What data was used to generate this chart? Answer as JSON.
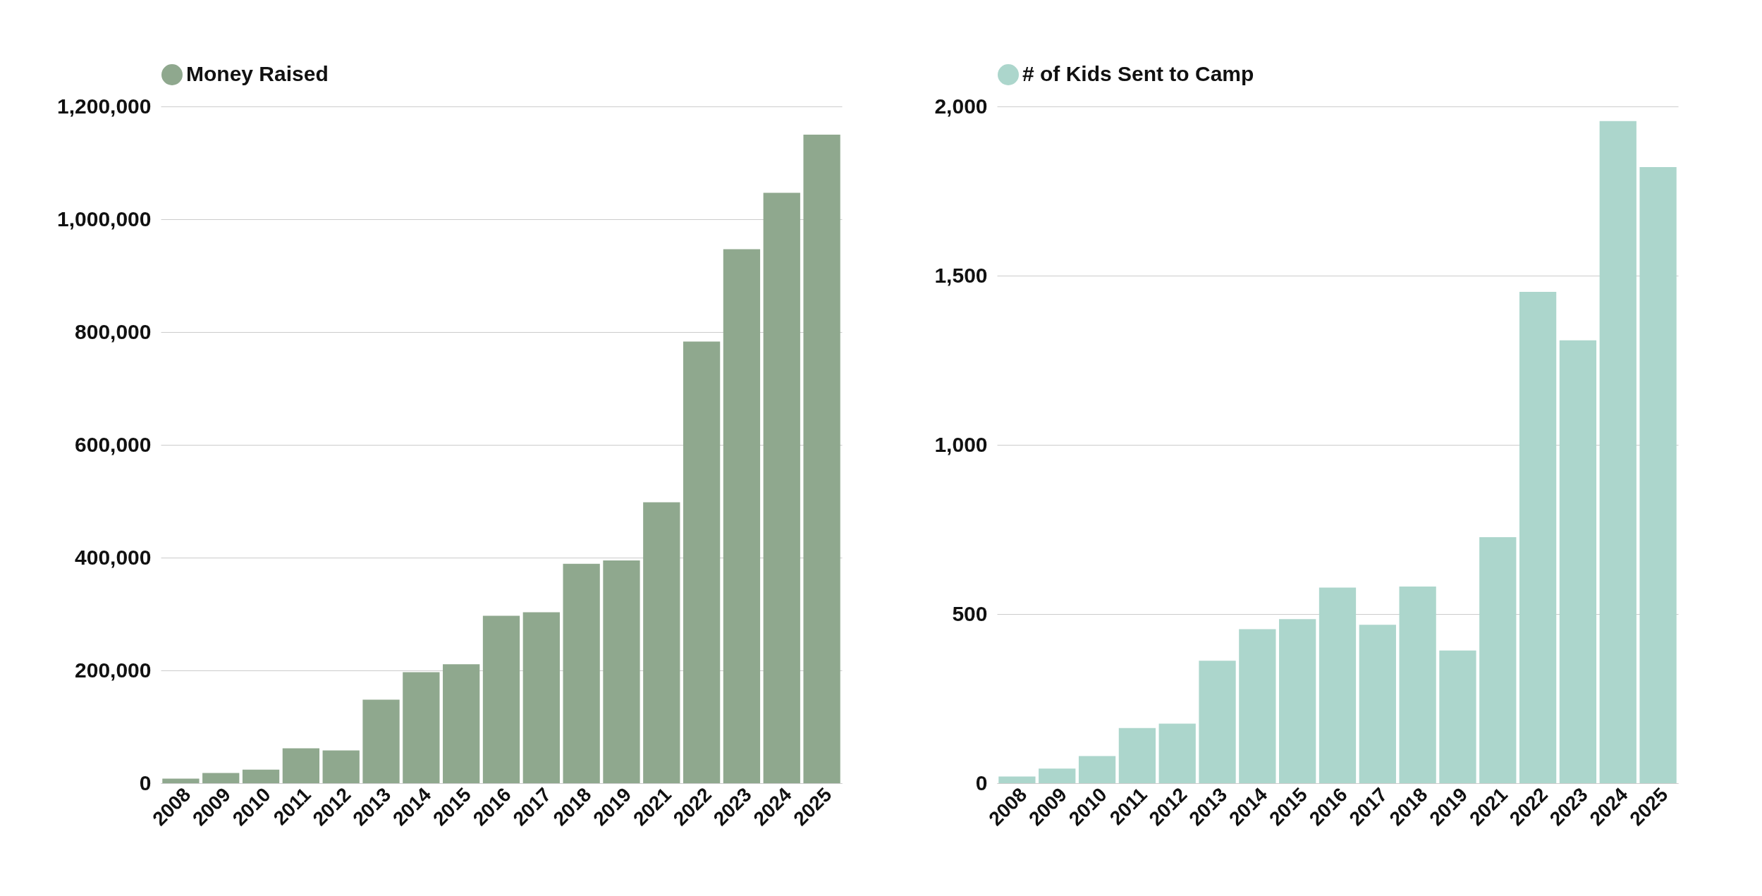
{
  "chart_data": [
    {
      "type": "bar",
      "categories": [
        "2008",
        "2009",
        "2010",
        "2011",
        "2012",
        "2013",
        "2014",
        "2015",
        "2016",
        "2017",
        "2018",
        "2019",
        "2021",
        "2022",
        "2023",
        "2024",
        "2025"
      ],
      "series": [
        {
          "name": "Money Raised",
          "color": "#8fa88e",
          "values": [
            8000,
            18000,
            24000,
            62000,
            58000,
            148000,
            197000,
            211000,
            297000,
            303000,
            389000,
            395000,
            498000,
            783000,
            947000,
            1047000,
            1150000
          ]
        }
      ],
      "ylim": [
        0,
        1200000
      ],
      "yticks": [
        {
          "value": 0,
          "label": "0"
        },
        {
          "value": 200000,
          "label": "200,000"
        },
        {
          "value": 400000,
          "label": "400,000"
        },
        {
          "value": 600000,
          "label": "600,000"
        },
        {
          "value": 800000,
          "label": "800,000"
        },
        {
          "value": 1000000,
          "label": "1,000,000"
        },
        {
          "value": 1200000,
          "label": "1,200,000"
        }
      ],
      "grid": "y",
      "legend": "top"
    },
    {
      "type": "bar",
      "categories": [
        "2008",
        "2009",
        "2010",
        "2011",
        "2012",
        "2013",
        "2014",
        "2015",
        "2016",
        "2017",
        "2018",
        "2019",
        "2021",
        "2022",
        "2023",
        "2024",
        "2025"
      ],
      "series": [
        {
          "name": "# of Kids Sent to Camp",
          "color": "#acd6cc",
          "values": [
            20,
            43,
            80,
            163,
            176,
            362,
            455,
            485,
            578,
            468,
            581,
            392,
            727,
            1452,
            1309,
            1957,
            1821
          ]
        }
      ],
      "ylim": [
        0,
        2000
      ],
      "yticks": [
        {
          "value": 0,
          "label": "0"
        },
        {
          "value": 500,
          "label": "500"
        },
        {
          "value": 1000,
          "label": "1,000"
        },
        {
          "value": 1500,
          "label": "1,500"
        },
        {
          "value": 2000,
          "label": "2,000"
        }
      ],
      "grid": "y",
      "legend": "top"
    }
  ]
}
